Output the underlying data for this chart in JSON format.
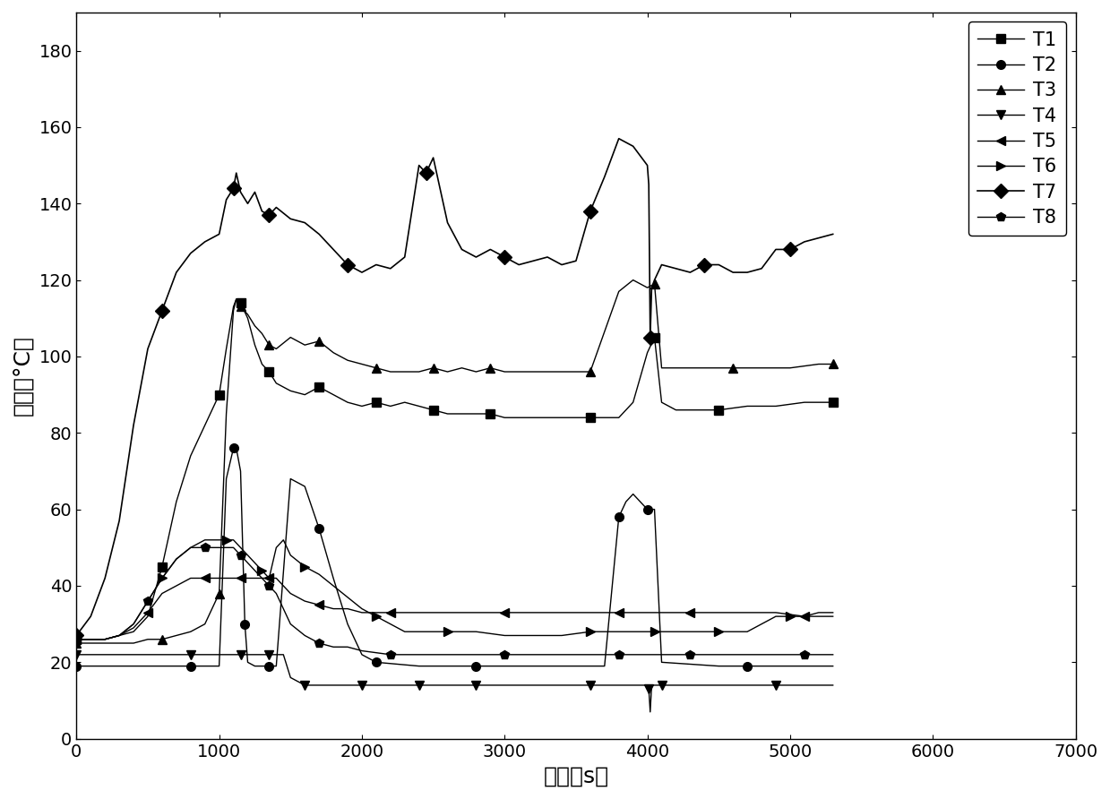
{
  "title": "",
  "xlabel": "时间（s）",
  "ylabel": "温度（°C）",
  "xlim": [
    0,
    7000
  ],
  "ylim": [
    0,
    190
  ],
  "xticks": [
    0,
    1000,
    2000,
    3000,
    4000,
    5000,
    6000,
    7000
  ],
  "yticks": [
    0,
    20,
    40,
    60,
    80,
    100,
    120,
    140,
    160,
    180
  ],
  "legend_labels": [
    "T1",
    "T2",
    "T3",
    "T4",
    "T5",
    "T6",
    "T7",
    "T8"
  ],
  "T1": {
    "x": [
      0,
      200,
      400,
      500,
      600,
      700,
      800,
      900,
      1000,
      1050,
      1100,
      1120,
      1150,
      1200,
      1250,
      1300,
      1350,
      1400,
      1500,
      1600,
      1700,
      1800,
      1900,
      2000,
      2100,
      2200,
      2300,
      2400,
      2500,
      2600,
      2700,
      2800,
      2900,
      3000,
      3200,
      3400,
      3600,
      3800,
      3900,
      4000,
      4050,
      4100,
      4200,
      4300,
      4500,
      4700,
      4900,
      5100,
      5300
    ],
    "y": [
      26,
      26,
      28,
      32,
      45,
      62,
      74,
      82,
      90,
      102,
      113,
      115,
      114,
      110,
      103,
      98,
      96,
      93,
      91,
      90,
      92,
      90,
      88,
      87,
      88,
      87,
      88,
      87,
      86,
      85,
      85,
      85,
      85,
      84,
      84,
      84,
      84,
      84,
      88,
      101,
      105,
      88,
      86,
      86,
      86,
      87,
      87,
      88,
      88
    ]
  },
  "T2": {
    "x": [
      0,
      200,
      400,
      600,
      800,
      900,
      1000,
      1050,
      1100,
      1120,
      1130,
      1150,
      1180,
      1200,
      1250,
      1300,
      1350,
      1400,
      1500,
      1600,
      1700,
      1800,
      1900,
      2000,
      2100,
      2400,
      2500,
      2600,
      2800,
      3000,
      3500,
      3700,
      3800,
      3850,
      3900,
      3950,
      4000,
      4050,
      4100,
      4500,
      4700,
      4900,
      5100,
      5300
    ],
    "y": [
      19,
      19,
      19,
      19,
      19,
      19,
      19,
      68,
      76,
      76,
      74,
      70,
      30,
      20,
      19,
      19,
      19,
      19,
      68,
      66,
      55,
      42,
      30,
      22,
      20,
      19,
      19,
      19,
      19,
      19,
      19,
      19,
      58,
      62,
      64,
      62,
      60,
      60,
      20,
      19,
      19,
      19,
      19,
      19
    ]
  },
  "T3": {
    "x": [
      0,
      200,
      400,
      500,
      600,
      700,
      800,
      900,
      1000,
      1050,
      1100,
      1120,
      1150,
      1200,
      1250,
      1300,
      1350,
      1400,
      1500,
      1600,
      1700,
      1800,
      1900,
      2000,
      2100,
      2200,
      2300,
      2400,
      2500,
      2600,
      2700,
      2800,
      2900,
      3000,
      3200,
      3400,
      3600,
      3800,
      3900,
      4000,
      4050,
      4100,
      4200,
      4400,
      4600,
      4800,
      5000,
      5200,
      5300
    ],
    "y": [
      25,
      25,
      25,
      26,
      26,
      27,
      28,
      30,
      38,
      85,
      112,
      115,
      113,
      111,
      108,
      106,
      103,
      102,
      105,
      103,
      104,
      101,
      99,
      98,
      97,
      96,
      96,
      96,
      97,
      96,
      97,
      96,
      97,
      96,
      96,
      96,
      96,
      117,
      120,
      118,
      119,
      97,
      97,
      97,
      97,
      97,
      97,
      98,
      98
    ]
  },
  "T4": {
    "x": [
      0,
      200,
      400,
      600,
      800,
      1000,
      1050,
      1100,
      1150,
      1200,
      1250,
      1300,
      1350,
      1400,
      1450,
      1500,
      1600,
      1700,
      1800,
      1900,
      2000,
      2100,
      2200,
      2300,
      2400,
      2500,
      2600,
      2700,
      2800,
      3000,
      3200,
      3400,
      3600,
      3800,
      3900,
      4000,
      4010,
      4020,
      4030,
      4050,
      4100,
      4300,
      4500,
      4700,
      4900,
      5100,
      5300
    ],
    "y": [
      22,
      22,
      22,
      22,
      22,
      22,
      22,
      22,
      22,
      22,
      22,
      22,
      22,
      22,
      22,
      16,
      14,
      14,
      14,
      14,
      14,
      14,
      14,
      14,
      14,
      14,
      14,
      14,
      14,
      14,
      14,
      14,
      14,
      14,
      14,
      14,
      13,
      7,
      14,
      14,
      14,
      14,
      14,
      14,
      14,
      14,
      14
    ]
  },
  "T5": {
    "x": [
      0,
      200,
      300,
      400,
      500,
      600,
      700,
      800,
      900,
      1000,
      1050,
      1100,
      1150,
      1200,
      1250,
      1300,
      1350,
      1400,
      1500,
      1600,
      1700,
      1800,
      1900,
      2000,
      2200,
      2400,
      2600,
      2800,
      3000,
      3200,
      3400,
      3600,
      3800,
      4000,
      4050,
      4100,
      4300,
      4500,
      4700,
      4900,
      5100,
      5200,
      5300
    ],
    "y": [
      26,
      26,
      27,
      29,
      33,
      38,
      40,
      42,
      42,
      42,
      42,
      42,
      42,
      42,
      42,
      42,
      42,
      42,
      38,
      36,
      35,
      34,
      34,
      33,
      33,
      33,
      33,
      33,
      33,
      33,
      33,
      33,
      33,
      33,
      33,
      33,
      33,
      33,
      33,
      33,
      32,
      33,
      33
    ]
  },
  "T6": {
    "x": [
      0,
      200,
      300,
      400,
      500,
      600,
      700,
      800,
      900,
      1000,
      1050,
      1100,
      1150,
      1200,
      1250,
      1300,
      1350,
      1400,
      1450,
      1500,
      1600,
      1700,
      1800,
      1900,
      2000,
      2100,
      2200,
      2300,
      2400,
      2500,
      2600,
      2800,
      3000,
      3200,
      3400,
      3600,
      3700,
      3800,
      3900,
      4000,
      4050,
      4100,
      4200,
      4300,
      4400,
      4500,
      4600,
      4700,
      4800,
      4900,
      5000,
      5100,
      5200,
      5300
    ],
    "y": [
      26,
      26,
      27,
      30,
      36,
      42,
      47,
      50,
      52,
      52,
      52,
      52,
      50,
      48,
      46,
      44,
      42,
      50,
      52,
      48,
      45,
      43,
      40,
      37,
      34,
      32,
      30,
      28,
      28,
      28,
      28,
      28,
      27,
      27,
      27,
      28,
      28,
      28,
      28,
      28,
      28,
      28,
      28,
      28,
      28,
      28,
      28,
      28,
      30,
      32,
      32,
      32,
      32,
      32
    ]
  },
  "T7": {
    "x": [
      0,
      100,
      200,
      300,
      400,
      500,
      600,
      700,
      800,
      900,
      1000,
      1050,
      1100,
      1120,
      1150,
      1200,
      1250,
      1300,
      1350,
      1400,
      1500,
      1600,
      1700,
      1800,
      1900,
      2000,
      2100,
      2200,
      2300,
      2400,
      2450,
      2500,
      2600,
      2700,
      2800,
      2900,
      3000,
      3100,
      3200,
      3300,
      3400,
      3500,
      3600,
      3700,
      3800,
      3900,
      4000,
      4010,
      4020,
      4030,
      4050,
      4100,
      4200,
      4300,
      4400,
      4500,
      4600,
      4700,
      4800,
      4900,
      5000,
      5100,
      5200,
      5300
    ],
    "y": [
      27,
      32,
      42,
      57,
      82,
      102,
      112,
      122,
      127,
      130,
      132,
      141,
      144,
      148,
      143,
      140,
      143,
      138,
      137,
      139,
      136,
      135,
      132,
      128,
      124,
      122,
      124,
      123,
      126,
      150,
      148,
      152,
      135,
      128,
      126,
      128,
      126,
      124,
      125,
      126,
      124,
      125,
      138,
      147,
      157,
      155,
      150,
      145,
      105,
      118,
      120,
      124,
      123,
      122,
      124,
      124,
      122,
      122,
      123,
      128,
      128,
      130,
      131,
      132
    ]
  },
  "T8": {
    "x": [
      0,
      200,
      300,
      400,
      500,
      600,
      700,
      800,
      900,
      1000,
      1050,
      1100,
      1150,
      1200,
      1250,
      1300,
      1350,
      1400,
      1500,
      1600,
      1700,
      1800,
      1900,
      2000,
      2200,
      2400,
      2600,
      2800,
      3000,
      3200,
      3400,
      3600,
      3800,
      4000,
      4050,
      4100,
      4300,
      4500,
      4700,
      4900,
      5100,
      5300
    ],
    "y": [
      26,
      26,
      27,
      30,
      36,
      42,
      47,
      50,
      50,
      50,
      50,
      50,
      48,
      46,
      44,
      42,
      40,
      38,
      30,
      27,
      25,
      24,
      24,
      23,
      22,
      22,
      22,
      22,
      22,
      22,
      22,
      22,
      22,
      22,
      22,
      22,
      22,
      22,
      22,
      22,
      22,
      22
    ]
  }
}
